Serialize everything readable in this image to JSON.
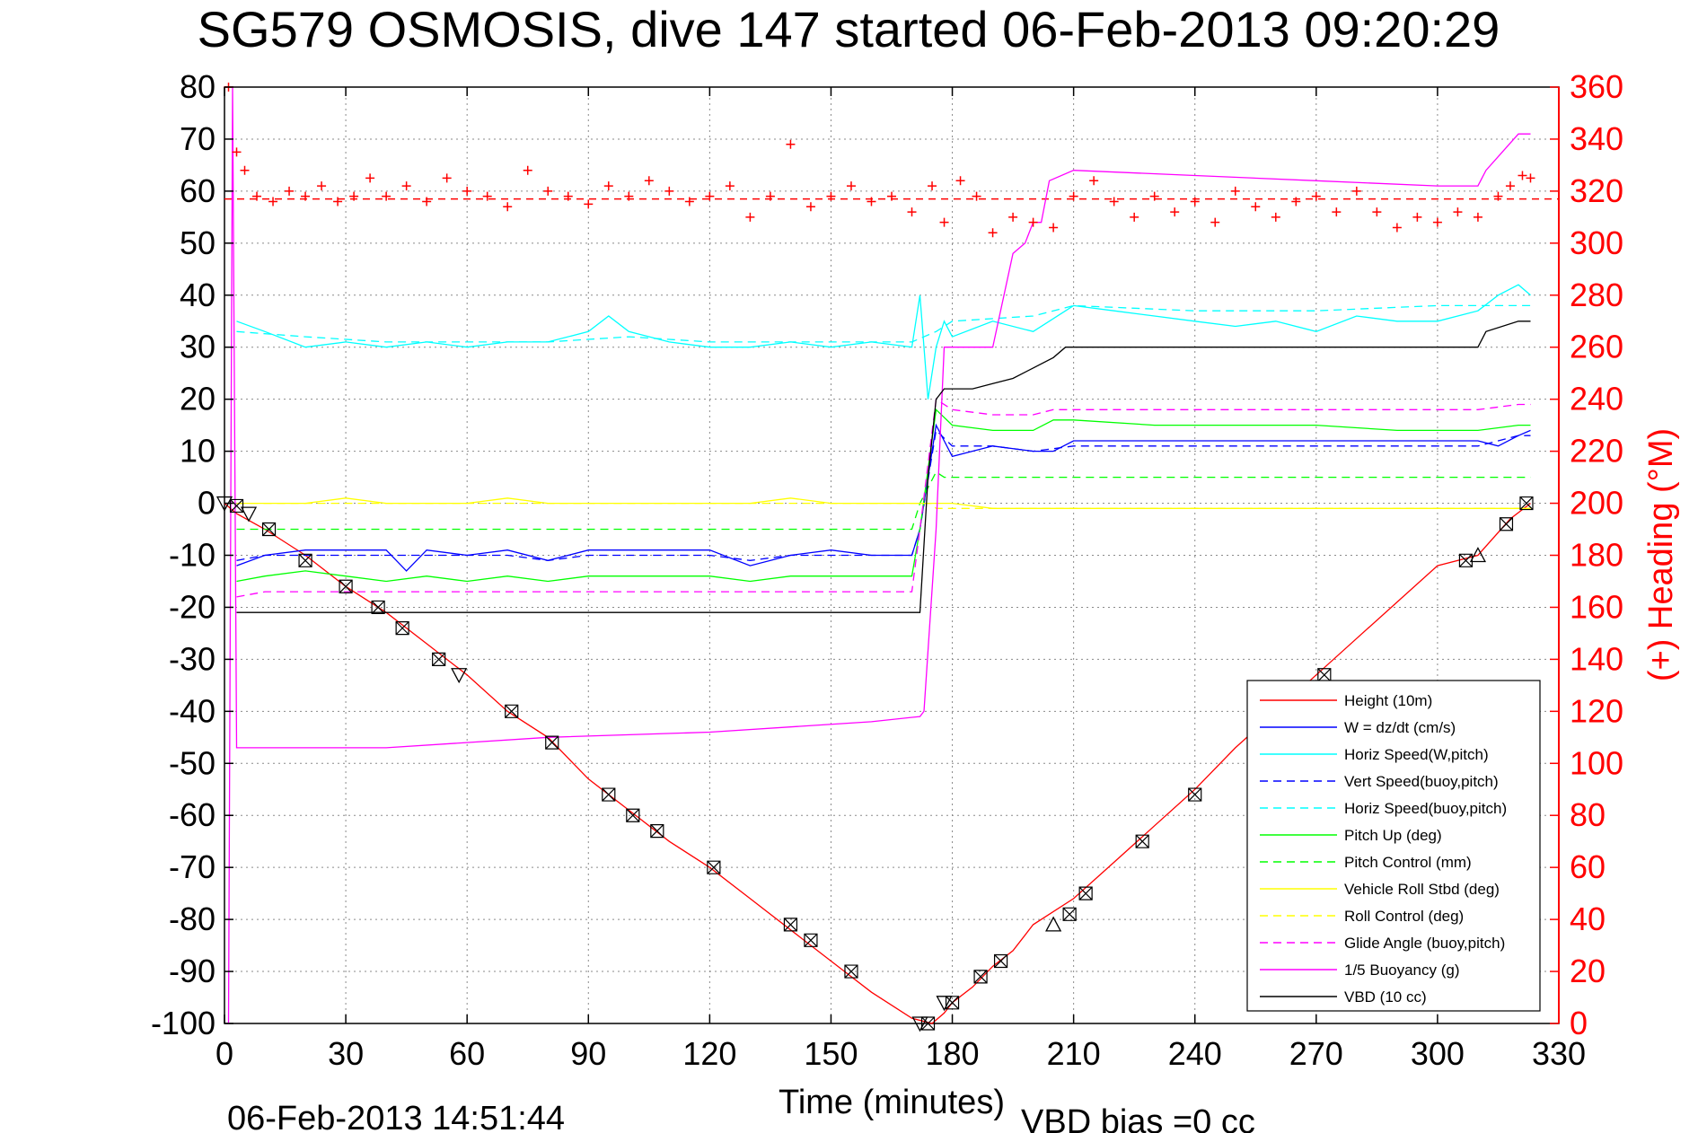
{
  "chart_data": {
    "type": "line",
    "title": "SG579 OSMOSIS, dive 147 started 06-Feb-2013 09:20:29",
    "xlabel": "Time (minutes)",
    "ylabel_right": "(+) Heading (°M)",
    "xlim": [
      0,
      330
    ],
    "ylim_left": [
      -100,
      80
    ],
    "ylim_right": [
      0,
      360
    ],
    "x_ticks": [
      "0",
      "30",
      "60",
      "90",
      "120",
      "150",
      "180",
      "210",
      "240",
      "270",
      "300",
      "330"
    ],
    "y_ticks_left": [
      "80",
      "70",
      "60",
      "50",
      "40",
      "30",
      "20",
      "10",
      "0",
      "-10",
      "-20",
      "-30",
      "-40",
      "-50",
      "-60",
      "-70",
      "-80",
      "-90",
      "-100"
    ],
    "y_ticks_right": [
      "360",
      "340",
      "320",
      "300",
      "280",
      "260",
      "240",
      "220",
      "200",
      "180",
      "160",
      "140",
      "120",
      "100",
      "80",
      "60",
      "40",
      "20",
      "0"
    ],
    "grid": true,
    "legend_position": "bottom-right",
    "footer_left": "06-Feb-2013 14:51:44",
    "footer_right": "VBD bias =0 cc",
    "series": [
      {
        "name": "Height (10m)",
        "color": "#ff0000",
        "style": "solid",
        "x": [
          0,
          3,
          10,
          20,
          30,
          40,
          50,
          60,
          70,
          80,
          90,
          100,
          110,
          120,
          130,
          140,
          150,
          160,
          170,
          175,
          178,
          180,
          185,
          190,
          195,
          200,
          210,
          220,
          230,
          240,
          250,
          260,
          270,
          280,
          290,
          300,
          310,
          318,
          323
        ],
        "y": [
          0,
          -2,
          -5,
          -10,
          -16,
          -21,
          -27,
          -33,
          -40,
          -45,
          -53,
          -59,
          -65,
          -70,
          -76,
          -82,
          -88,
          -94,
          -99,
          -100,
          -98,
          -96,
          -93,
          -89,
          -86,
          -81,
          -76,
          -69,
          -62,
          -55,
          -47,
          -40,
          -33,
          -26,
          -19,
          -12,
          -10,
          -3,
          0
        ]
      },
      {
        "name": "W = dz/dt (cm/s)",
        "color": "#0000ff",
        "style": "solid",
        "x": [
          3,
          10,
          20,
          30,
          40,
          45,
          50,
          60,
          70,
          80,
          90,
          100,
          110,
          120,
          130,
          140,
          150,
          160,
          170,
          172,
          174,
          176,
          178,
          180,
          190,
          200,
          205,
          210,
          230,
          250,
          270,
          290,
          300,
          310,
          315,
          320,
          323
        ],
        "y": [
          -12,
          -10,
          -9,
          -9,
          -9,
          -13,
          -9,
          -10,
          -9,
          -11,
          -9,
          -9,
          -9,
          -9,
          -12,
          -10,
          -9,
          -10,
          -10,
          -5,
          5,
          15,
          12,
          9,
          11,
          10,
          10,
          12,
          12,
          12,
          12,
          12,
          12,
          12,
          11,
          13,
          14
        ]
      },
      {
        "name": "Horiz Speed(W,pitch)",
        "color": "#00ffff",
        "style": "solid",
        "x": [
          3,
          10,
          20,
          30,
          40,
          50,
          60,
          70,
          80,
          90,
          95,
          100,
          110,
          120,
          130,
          140,
          150,
          160,
          170,
          172,
          174,
          176,
          178,
          180,
          190,
          200,
          210,
          220,
          230,
          240,
          250,
          260,
          270,
          280,
          290,
          300,
          310,
          315,
          320,
          323
        ],
        "y": [
          35,
          33,
          30,
          31,
          30,
          31,
          30,
          31,
          31,
          33,
          36,
          33,
          31,
          30,
          30,
          31,
          30,
          31,
          30,
          40,
          20,
          30,
          35,
          32,
          35,
          33,
          38,
          37,
          36,
          35,
          34,
          35,
          33,
          36,
          35,
          35,
          37,
          40,
          42,
          40
        ]
      },
      {
        "name": "Vert Speed(buoy,pitch)",
        "color": "#0000ff",
        "style": "dashed",
        "x": [
          3,
          10,
          20,
          30,
          40,
          50,
          60,
          70,
          80,
          90,
          100,
          110,
          120,
          130,
          140,
          150,
          160,
          170,
          172,
          176,
          180,
          190,
          200,
          210,
          230,
          250,
          270,
          290,
          310,
          320,
          323
        ],
        "y": [
          -11,
          -10,
          -10,
          -10,
          -10,
          -10,
          -10,
          -10,
          -11,
          -10,
          -10,
          -10,
          -10,
          -11,
          -10,
          -10,
          -10,
          -10,
          -5,
          14,
          11,
          11,
          10,
          11,
          11,
          11,
          11,
          11,
          11,
          13,
          13
        ]
      },
      {
        "name": "Horiz Speed(buoy,pitch)",
        "color": "#00ffff",
        "style": "dashed",
        "x": [
          3,
          20,
          40,
          60,
          80,
          100,
          120,
          140,
          160,
          170,
          176,
          180,
          200,
          210,
          240,
          270,
          300,
          320,
          323
        ],
        "y": [
          33,
          32,
          31,
          31,
          31,
          32,
          31,
          31,
          31,
          31,
          33,
          35,
          36,
          38,
          37,
          37,
          38,
          38,
          38
        ]
      },
      {
        "name": "Pitch Up (deg)",
        "color": "#00ff00",
        "style": "solid",
        "x": [
          3,
          10,
          20,
          30,
          40,
          50,
          60,
          70,
          80,
          90,
          100,
          110,
          120,
          130,
          140,
          150,
          160,
          170,
          172,
          176,
          180,
          190,
          200,
          205,
          210,
          230,
          250,
          270,
          290,
          310,
          320,
          323
        ],
        "y": [
          -15,
          -14,
          -13,
          -14,
          -15,
          -14,
          -15,
          -14,
          -15,
          -14,
          -14,
          -14,
          -14,
          -15,
          -14,
          -14,
          -14,
          -14,
          -5,
          18,
          15,
          14,
          14,
          16,
          16,
          15,
          15,
          15,
          14,
          14,
          15,
          15
        ]
      },
      {
        "name": "Pitch Control (mm)",
        "color": "#00ff00",
        "style": "dashed",
        "x": [
          3,
          170,
          172,
          176,
          178,
          200,
          250,
          300,
          320,
          323
        ],
        "y": [
          -5,
          -5,
          0,
          6,
          5,
          5,
          5,
          5,
          5,
          5
        ]
      },
      {
        "name": "Vehicle Roll Stbd (deg)",
        "color": "#ffff00",
        "style": "solid",
        "x": [
          3,
          10,
          20,
          30,
          40,
          50,
          60,
          70,
          80,
          90,
          100,
          110,
          120,
          130,
          140,
          150,
          160,
          170,
          175,
          180,
          190,
          200,
          210,
          220,
          230,
          240,
          250,
          260,
          270,
          280,
          290,
          300,
          310,
          320,
          323
        ],
        "y": [
          0,
          0,
          0,
          1,
          0,
          0,
          0,
          1,
          0,
          0,
          0,
          0,
          0,
          0,
          1,
          0,
          0,
          0,
          0,
          0,
          -1,
          -1,
          -1,
          -1,
          -1,
          -1,
          -1,
          -1,
          -1,
          -1,
          -1,
          -1,
          -1,
          -1,
          -1
        ]
      },
      {
        "name": "Roll Control (deg)",
        "color": "#ffff00",
        "style": "dashed",
        "x": [
          3,
          175,
          176,
          323
        ],
        "y": [
          0,
          0,
          -1,
          -1
        ]
      },
      {
        "name": "Glide Angle (buoy,pitch)",
        "color": "#ff00ff",
        "style": "dashed",
        "x": [
          3,
          10,
          20,
          30,
          40,
          50,
          60,
          70,
          80,
          90,
          100,
          110,
          120,
          130,
          140,
          150,
          160,
          170,
          172,
          176,
          180,
          190,
          200,
          205,
          210,
          230,
          250,
          270,
          290,
          310,
          320,
          323
        ],
        "y": [
          -18,
          -17,
          -17,
          -17,
          -17,
          -17,
          -17,
          -17,
          -17,
          -17,
          -17,
          -17,
          -17,
          -17,
          -17,
          -17,
          -17,
          -17,
          -5,
          20,
          18,
          17,
          17,
          18,
          18,
          18,
          18,
          18,
          18,
          18,
          19,
          19
        ]
      },
      {
        "name": "1/5 Buoyancy (g)",
        "color": "#ff00ff",
        "style": "solid",
        "x": [
          1,
          2,
          3,
          40,
          80,
          120,
          160,
          172,
          173,
          176,
          178,
          190,
          195,
          198,
          200,
          202,
          204,
          210,
          240,
          270,
          300,
          310,
          312,
          320,
          323
        ],
        "y": [
          -100,
          80,
          -47,
          -47,
          -45,
          -44,
          -42,
          -41,
          -40,
          -5,
          30,
          30,
          48,
          50,
          54,
          54,
          62,
          64,
          63,
          62,
          61,
          61,
          64,
          71,
          71
        ]
      },
      {
        "name": "VBD (10 cc)",
        "color": "#000000",
        "style": "solid",
        "x": [
          3,
          60,
          120,
          172,
          174,
          176,
          178,
          185,
          190,
          195,
          200,
          205,
          208,
          210,
          240,
          270,
          300,
          310,
          312,
          320,
          323
        ],
        "y": [
          -21,
          -21,
          -21,
          -21,
          5,
          20,
          22,
          22,
          23,
          24,
          26,
          28,
          30,
          30,
          30,
          30,
          30,
          30,
          33,
          35,
          35
        ]
      }
    ],
    "heading": {
      "name": "(+) Heading",
      "color": "#ff0000",
      "marker": "+",
      "reference_value": 317,
      "x": [
        1,
        3,
        5,
        8,
        12,
        16,
        20,
        24,
        28,
        32,
        36,
        40,
        45,
        50,
        55,
        60,
        65,
        70,
        75,
        80,
        85,
        90,
        95,
        100,
        105,
        110,
        115,
        120,
        125,
        130,
        135,
        140,
        145,
        150,
        155,
        160,
        165,
        170,
        175,
        178,
        182,
        186,
        190,
        195,
        200,
        205,
        210,
        215,
        220,
        225,
        230,
        235,
        240,
        245,
        250,
        255,
        260,
        265,
        270,
        275,
        280,
        285,
        290,
        295,
        300,
        305,
        310,
        315,
        318,
        321,
        323
      ],
      "y": [
        360,
        335,
        328,
        318,
        316,
        320,
        318,
        322,
        316,
        318,
        325,
        318,
        322,
        316,
        325,
        320,
        318,
        314,
        328,
        320,
        318,
        315,
        322,
        318,
        324,
        320,
        316,
        318,
        322,
        310,
        318,
        338,
        314,
        318,
        322,
        316,
        318,
        312,
        322,
        308,
        324,
        318,
        304,
        310,
        308,
        306,
        318,
        324,
        316,
        310,
        318,
        312,
        316,
        308,
        320,
        314,
        310,
        316,
        318,
        312,
        320,
        312,
        306,
        310,
        308,
        312,
        310,
        318,
        322,
        326,
        325
      ]
    },
    "markers": {
      "down_triangles": [
        [
          0,
          0
        ],
        [
          6,
          -2
        ],
        [
          58,
          -33
        ],
        [
          172,
          -100
        ],
        [
          178,
          -96
        ]
      ],
      "up_triangles": [
        [
          205,
          -81
        ],
        [
          310,
          -10
        ]
      ],
      "boxes": [
        [
          3,
          -0.5
        ],
        [
          11,
          -5
        ],
        [
          20,
          -11
        ],
        [
          30,
          -16
        ],
        [
          38,
          -20
        ],
        [
          44,
          -24
        ],
        [
          53,
          -30
        ],
        [
          71,
          -40
        ],
        [
          81,
          -46
        ],
        [
          95,
          -56
        ],
        [
          101,
          -60
        ],
        [
          107,
          -63
        ],
        [
          121,
          -70
        ],
        [
          140,
          -81
        ],
        [
          145,
          -84
        ],
        [
          155,
          -90
        ],
        [
          174,
          -100
        ],
        [
          180,
          -96
        ],
        [
          187,
          -91
        ],
        [
          192,
          -88
        ],
        [
          209,
          -79
        ],
        [
          213,
          -75
        ],
        [
          227,
          -65
        ],
        [
          240,
          -56
        ],
        [
          272,
          -33
        ],
        [
          307,
          -11
        ],
        [
          317,
          -4
        ],
        [
          322,
          0
        ]
      ]
    }
  }
}
